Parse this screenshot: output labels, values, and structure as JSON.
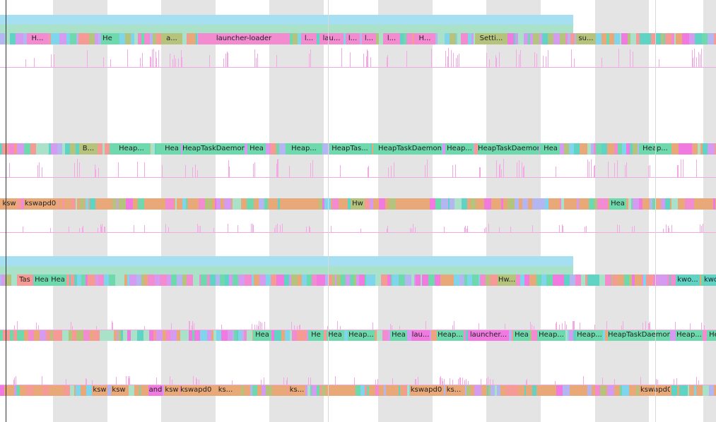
{
  "palette": {
    "pink": "#f28bd0",
    "magenta": "#f07ae0",
    "green": "#6fd9ae",
    "teal": "#5fd4c4",
    "olive": "#b5c37c",
    "orange": "#e8a878",
    "salmon": "#f59a94",
    "sky": "#a6dff2",
    "mint": "#a9e2c9",
    "lilac": "#b3b6f0",
    "cyan": "#7fd6ec",
    "violet": "#d49bf0",
    "tick_pink": "#f4a8e4",
    "line_pink": "#f2a8e0",
    "stripe_gray": "#e4e4e4"
  },
  "tracks": [
    {
      "id": "cpu0",
      "labels": [
        {
          "text": "H...",
          "color": "pink"
        },
        {
          "text": "He",
          "color": "green"
        },
        {
          "text": "a...",
          "color": "olive"
        },
        {
          "text": "launcher-loader",
          "color": "pink"
        },
        {
          "text": "l...",
          "color": "pink"
        },
        {
          "text": "lau...",
          "color": "pink"
        },
        {
          "text": "l...",
          "color": "pink"
        },
        {
          "text": "l...",
          "color": "pink"
        },
        {
          "text": "l...",
          "color": "pink"
        },
        {
          "text": "H...",
          "color": "pink"
        },
        {
          "text": "Setti...",
          "color": "olive"
        },
        {
          "text": "su...",
          "color": "olive"
        }
      ]
    },
    {
      "id": "cpu1",
      "labels": [
        {
          "text": "B...",
          "color": "olive"
        },
        {
          "text": "Heap...",
          "color": "green"
        },
        {
          "text": "Hea",
          "color": "green"
        },
        {
          "text": "HeapTaskDaemon",
          "color": "green"
        },
        {
          "text": "Hea",
          "color": "green"
        },
        {
          "text": "Heap...",
          "color": "green"
        },
        {
          "text": "HeapTas...",
          "color": "green"
        },
        {
          "text": "HeapTaskDaemon",
          "color": "green"
        },
        {
          "text": "Heap...",
          "color": "green"
        },
        {
          "text": "HeapTaskDaemon",
          "color": "green"
        },
        {
          "text": "Hea",
          "color": "green"
        },
        {
          "text": "Heap...",
          "color": "green"
        }
      ]
    },
    {
      "id": "cpu2",
      "labels": [
        {
          "text": "ksw",
          "color": "orange"
        },
        {
          "text": "kswapd0",
          "color": "orange"
        },
        {
          "text": "Hw",
          "color": "olive"
        },
        {
          "text": "Hea",
          "color": "green"
        }
      ]
    },
    {
      "id": "cpu3",
      "labels": [
        {
          "text": "Tas",
          "color": "salmon"
        },
        {
          "text": "Hea",
          "color": "green"
        },
        {
          "text": "Hea",
          "color": "green"
        },
        {
          "text": "Hw...",
          "color": "olive"
        },
        {
          "text": "kwo...",
          "color": "teal"
        },
        {
          "text": "kwo",
          "color": "teal"
        }
      ]
    },
    {
      "id": "cpu4",
      "labels": [
        {
          "text": "Hea",
          "color": "green"
        },
        {
          "text": "He",
          "color": "green"
        },
        {
          "text": "Hea",
          "color": "green"
        },
        {
          "text": "Heap...",
          "color": "green"
        },
        {
          "text": "Hea",
          "color": "green"
        },
        {
          "text": "lau...",
          "color": "magenta"
        },
        {
          "text": "Heap...",
          "color": "green"
        },
        {
          "text": "launcher...",
          "color": "magenta"
        },
        {
          "text": "Hea",
          "color": "green"
        },
        {
          "text": "Heap...",
          "color": "green"
        },
        {
          "text": "Heap...",
          "color": "green"
        },
        {
          "text": "HeapTaskDaemon",
          "color": "green"
        },
        {
          "text": "Heap...",
          "color": "green"
        },
        {
          "text": "He",
          "color": "green"
        }
      ]
    },
    {
      "id": "cpu5",
      "labels": [
        {
          "text": "ksw",
          "color": "orange"
        },
        {
          "text": "ksw",
          "color": "orange"
        },
        {
          "text": "and",
          "color": "magenta"
        },
        {
          "text": "ksw",
          "color": "orange"
        },
        {
          "text": "kswapd0",
          "color": "orange"
        },
        {
          "text": "ks...",
          "color": "orange"
        },
        {
          "text": "ks...",
          "color": "orange"
        },
        {
          "text": "kswapd0",
          "color": "orange"
        },
        {
          "text": "ks...",
          "color": "orange"
        },
        {
          "text": "kswapd0",
          "color": "orange"
        }
      ]
    }
  ]
}
